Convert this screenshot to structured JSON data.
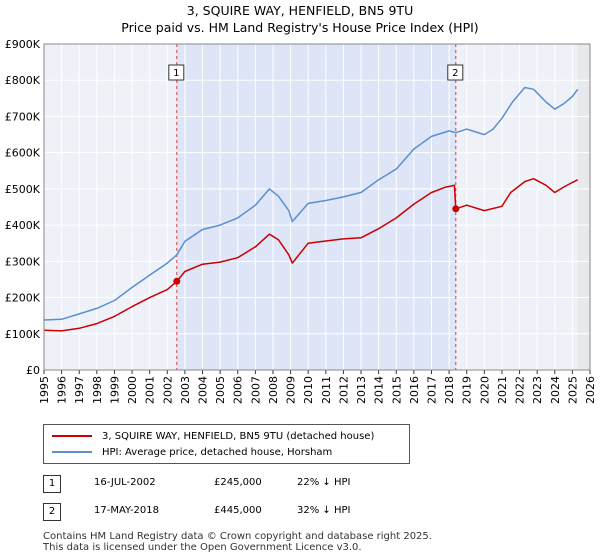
{
  "title": "3, SQUIRE WAY, HENFIELD, BN5 9TU",
  "subtitle": "Price paid vs. HM Land Registry's House Price Index (HPI)",
  "chart_data": {
    "type": "line",
    "title": "3, SQUIRE WAY, HENFIELD, BN5 9TU",
    "subtitle": "Price paid vs. HM Land Registry's House Price Index (HPI)",
    "xlim": [
      1995,
      2026
    ],
    "ylim": [
      0,
      900000
    ],
    "x_ticks": [
      "1995",
      "1996",
      "1997",
      "1998",
      "1999",
      "2000",
      "2001",
      "2002",
      "2003",
      "2004",
      "2005",
      "2006",
      "2007",
      "2008",
      "2009",
      "2010",
      "2011",
      "2012",
      "2013",
      "2014",
      "2015",
      "2016",
      "2017",
      "2018",
      "2019",
      "2020",
      "2021",
      "2022",
      "2023",
      "2024",
      "2025",
      "2026"
    ],
    "y_ticks": [
      {
        "value": 0,
        "label": "£0"
      },
      {
        "value": 100000,
        "label": "£100K"
      },
      {
        "value": 200000,
        "label": "£200K"
      },
      {
        "value": 300000,
        "label": "£300K"
      },
      {
        "value": 400000,
        "label": "£400K"
      },
      {
        "value": 500000,
        "label": "£500K"
      },
      {
        "value": 600000,
        "label": "£600K"
      },
      {
        "value": 700000,
        "label": "£700K"
      },
      {
        "value": 800000,
        "label": "£800K"
      },
      {
        "value": 900000,
        "label": "£900K"
      }
    ],
    "grid": true,
    "shaded_period": [
      2002.54,
      2018.38
    ],
    "series": [
      {
        "name": "3, SQUIRE WAY, HENFIELD, BN5 9TU (detached house)",
        "color": "#cc0000",
        "points": [
          [
            1995,
            110000
          ],
          [
            1996,
            108000
          ],
          [
            1997,
            115000
          ],
          [
            1998,
            128000
          ],
          [
            1999,
            148000
          ],
          [
            2000,
            175000
          ],
          [
            2001,
            200000
          ],
          [
            2002,
            222000
          ],
          [
            2002.54,
            245000
          ],
          [
            2003,
            272000
          ],
          [
            2004,
            292000
          ],
          [
            2005,
            298000
          ],
          [
            2006,
            310000
          ],
          [
            2007,
            340000
          ],
          [
            2007.8,
            375000
          ],
          [
            2008.3,
            360000
          ],
          [
            2008.9,
            318000
          ],
          [
            2009.1,
            295000
          ],
          [
            2010,
            350000
          ],
          [
            2011,
            356000
          ],
          [
            2012,
            362000
          ],
          [
            2013,
            365000
          ],
          [
            2014,
            390000
          ],
          [
            2015,
            420000
          ],
          [
            2016,
            458000
          ],
          [
            2017,
            490000
          ],
          [
            2017.8,
            505000
          ],
          [
            2018.3,
            510000
          ],
          [
            2018.38,
            445000
          ],
          [
            2019,
            455000
          ],
          [
            2020,
            440000
          ],
          [
            2021,
            452000
          ],
          [
            2021.5,
            490000
          ],
          [
            2022.3,
            520000
          ],
          [
            2022.8,
            528000
          ],
          [
            2023.5,
            510000
          ],
          [
            2024,
            490000
          ],
          [
            2024.5,
            505000
          ],
          [
            2025,
            518000
          ],
          [
            2025.3,
            525000
          ]
        ]
      },
      {
        "name": "HPI: Average price, detached house, Horsham",
        "color": "#5b8fcf",
        "points": [
          [
            1995,
            138000
          ],
          [
            1996,
            140000
          ],
          [
            1997,
            155000
          ],
          [
            1998,
            170000
          ],
          [
            1999,
            192000
          ],
          [
            2000,
            228000
          ],
          [
            2001,
            262000
          ],
          [
            2002,
            295000
          ],
          [
            2002.54,
            318000
          ],
          [
            2003,
            355000
          ],
          [
            2004,
            388000
          ],
          [
            2005,
            400000
          ],
          [
            2006,
            420000
          ],
          [
            2007,
            455000
          ],
          [
            2007.8,
            500000
          ],
          [
            2008.3,
            480000
          ],
          [
            2008.9,
            440000
          ],
          [
            2009.1,
            410000
          ],
          [
            2010,
            460000
          ],
          [
            2011,
            468000
          ],
          [
            2012,
            478000
          ],
          [
            2013,
            490000
          ],
          [
            2014,
            525000
          ],
          [
            2015,
            555000
          ],
          [
            2016,
            610000
          ],
          [
            2017,
            645000
          ],
          [
            2018,
            660000
          ],
          [
            2018.38,
            655000
          ],
          [
            2019,
            665000
          ],
          [
            2020,
            650000
          ],
          [
            2020.5,
            665000
          ],
          [
            2021,
            695000
          ],
          [
            2021.6,
            740000
          ],
          [
            2022.3,
            780000
          ],
          [
            2022.8,
            775000
          ],
          [
            2023.5,
            740000
          ],
          [
            2024,
            720000
          ],
          [
            2024.5,
            735000
          ],
          [
            2025,
            755000
          ],
          [
            2025.3,
            775000
          ]
        ]
      }
    ],
    "annotations": [
      {
        "label": "1",
        "x": 2002.54,
        "y": 245000
      },
      {
        "label": "2",
        "x": 2018.38,
        "y": 445000
      }
    ]
  },
  "legend": [
    {
      "label": "3, SQUIRE WAY, HENFIELD, BN5 9TU (detached house)",
      "color": "#cc0000"
    },
    {
      "label": "HPI: Average price, detached house, Horsham",
      "color": "#5b8fcf"
    }
  ],
  "transactions": [
    {
      "num": "1",
      "date": "16-JUL-2002",
      "price": "£245,000",
      "hpi": "22% ↓ HPI"
    },
    {
      "num": "2",
      "date": "17-MAY-2018",
      "price": "£445,000",
      "hpi": "32% ↓ HPI"
    }
  ],
  "footer": {
    "line1": "Contains HM Land Registry data © Crown copyright and database right 2025.",
    "line2": "This data is licensed under the Open Government Licence v3.0."
  }
}
